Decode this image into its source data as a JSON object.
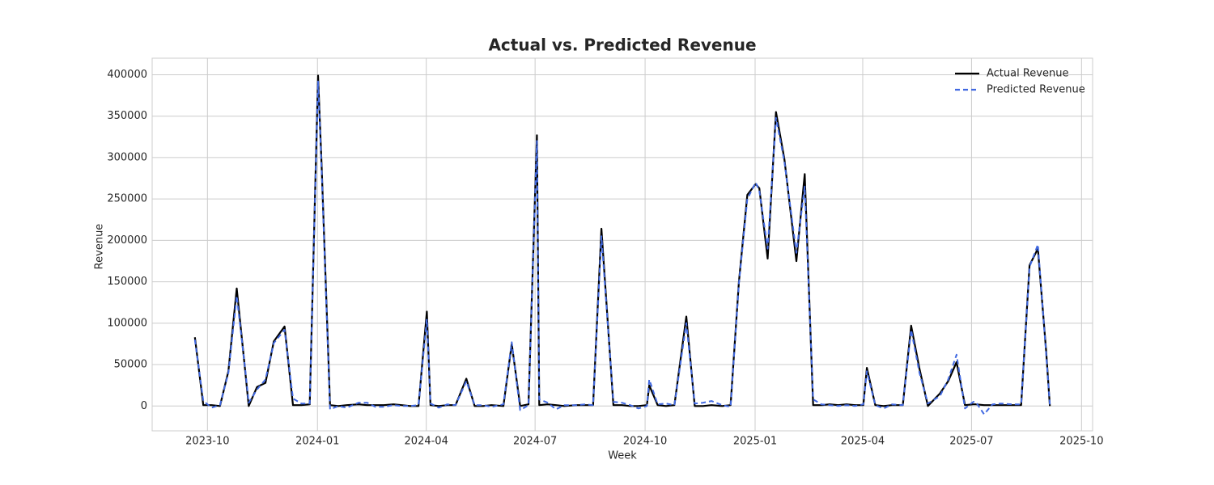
{
  "chart_data": {
    "type": "line",
    "title": "Actual vs. Predicted Revenue",
    "x_label": "Week",
    "y_label": "Revenue",
    "x": [
      "2023-09",
      "2023-09",
      "2023-10",
      "2023-10",
      "2023-10",
      "2023-10",
      "2023-10",
      "2023-11",
      "2023-11",
      "2023-11",
      "2023-11",
      "2023-12",
      "2023-12",
      "2023-12",
      "2023-12",
      "2023-12",
      "2024-01",
      "2024-01",
      "2024-01",
      "2024-01",
      "2024-02",
      "2024-02",
      "2024-02",
      "2024-02",
      "2024-03",
      "2024-03",
      "2024-03",
      "2024-03",
      "2024-03",
      "2024-04",
      "2024-04",
      "2024-04",
      "2024-04",
      "2024-05",
      "2024-05",
      "2024-05",
      "2024-05",
      "2024-06",
      "2024-06",
      "2024-06",
      "2024-06",
      "2024-06",
      "2024-07",
      "2024-07",
      "2024-07",
      "2024-07",
      "2024-08",
      "2024-08",
      "2024-08",
      "2024-08",
      "2024-09",
      "2024-09",
      "2024-09",
      "2024-09",
      "2024-09",
      "2024-10",
      "2024-10",
      "2024-10",
      "2024-10",
      "2024-11",
      "2024-11",
      "2024-11",
      "2024-11",
      "2024-12",
      "2024-12",
      "2024-12",
      "2024-12",
      "2024-12",
      "2025-01",
      "2025-01",
      "2025-01",
      "2025-01",
      "2025-02",
      "2025-02",
      "2025-02",
      "2025-02",
      "2025-03",
      "2025-03",
      "2025-03",
      "2025-03",
      "2025-03",
      "2025-04",
      "2025-04",
      "2025-04",
      "2025-04",
      "2025-05",
      "2025-05",
      "2025-05",
      "2025-05",
      "2025-06",
      "2025-06",
      "2025-06",
      "2025-06",
      "2025-06",
      "2025-07",
      "2025-07",
      "2025-07",
      "2025-07",
      "2025-08",
      "2025-08",
      "2025-08",
      "2025-08",
      "2025-08",
      "2025-09"
    ],
    "series": [
      {
        "name": "Actual Revenue",
        "color": "#000000",
        "dash": false,
        "values": [
          83000,
          1000,
          1000,
          0,
          42000,
          142000,
          43000,
          0,
          23000,
          28000,
          78000,
          96000,
          1000,
          1000,
          2000,
          399000,
          290000,
          1000,
          0,
          1000,
          2000,
          1000,
          1000,
          1000,
          2000,
          1000,
          0,
          0,
          114000,
          1000,
          0,
          1000,
          1000,
          33000,
          0,
          0,
          1000,
          0,
          75000,
          0,
          2000,
          327000,
          1000,
          2000,
          1000,
          0,
          1000,
          1000,
          1000,
          214000,
          1000,
          1000,
          0,
          0,
          1000,
          25000,
          1000,
          0,
          1000,
          108000,
          0,
          0,
          1000,
          0,
          1000,
          150000,
          255000,
          268000,
          263000,
          178000,
          355000,
          298000,
          175000,
          280000,
          1000,
          1000,
          2000,
          1000,
          2000,
          1000,
          1000,
          46000,
          1000,
          0,
          1000,
          1000,
          97000,
          45000,
          0,
          15000,
          30000,
          53000,
          1000,
          2000,
          2000,
          1000,
          1000,
          1000,
          1000,
          1000,
          170000,
          190000,
          65000,
          0
        ]
      },
      {
        "name": "Predicted Revenue",
        "color": "#4169e1",
        "dash": true,
        "values": [
          80000,
          6000,
          -2000,
          1000,
          40000,
          133000,
          45000,
          4000,
          20000,
          32000,
          76000,
          92000,
          9000,
          3000,
          3000,
          392000,
          285000,
          -4000,
          0,
          -2000,
          4000,
          4000,
          -1000,
          -1000,
          1000,
          0,
          0,
          1000,
          105000,
          3000,
          -2000,
          2000,
          1000,
          30000,
          1000,
          1000,
          -1000,
          2000,
          77000,
          -5000,
          1000,
          320000,
          8000,
          4000,
          -4000,
          1000,
          1000,
          2000,
          1000,
          205000,
          5000,
          4000,
          1000,
          -3000,
          0,
          32000,
          2000,
          3000,
          1000,
          100000,
          3000,
          4000,
          6000,
          1000,
          -1000,
          148000,
          250000,
          270000,
          260000,
          190000,
          348000,
          295000,
          185000,
          265000,
          8000,
          2000,
          1000,
          0,
          1000,
          0,
          2000,
          42000,
          1000,
          -3000,
          2000,
          1000,
          92000,
          40000,
          3000,
          12000,
          32000,
          62000,
          -3000,
          5000,
          5000,
          -10000,
          2000,
          3000,
          2000,
          2000,
          168000,
          195000,
          62000,
          1000
        ]
      }
    ],
    "xticks": [
      "2023-10",
      "2024-01",
      "2024-04",
      "2024-07",
      "2024-10",
      "2025-01",
      "2025-04",
      "2025-07",
      "2025-10"
    ],
    "ylim": [
      -30000,
      420000
    ],
    "yticks": [
      0,
      50000,
      100000,
      150000,
      200000,
      250000,
      300000,
      350000,
      400000
    ],
    "grid": true,
    "legend": "upper right"
  }
}
